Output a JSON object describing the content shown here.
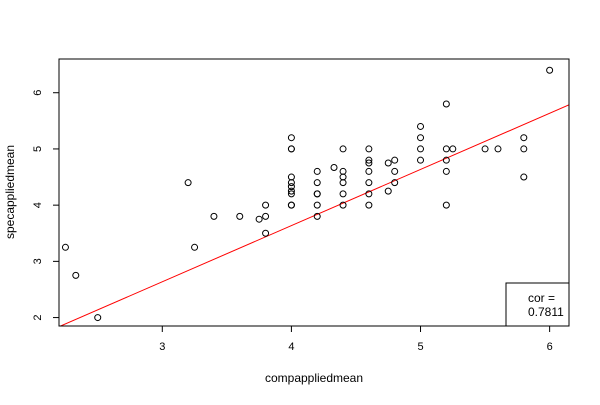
{
  "chart_data": {
    "type": "scatter",
    "xlabel": "compappliedmean",
    "ylabel": "specappliedmean",
    "xlim": [
      2.2,
      6.15
    ],
    "ylim": [
      1.85,
      6.6
    ],
    "xticks": [
      3,
      4,
      5,
      6
    ],
    "yticks": [
      2,
      3,
      4,
      5,
      6
    ],
    "grid": false,
    "points": [
      [
        2.25,
        3.25
      ],
      [
        2.33,
        2.75
      ],
      [
        2.5,
        2.0
      ],
      [
        3.2,
        4.4
      ],
      [
        3.25,
        3.25
      ],
      [
        3.4,
        3.8
      ],
      [
        3.6,
        3.8
      ],
      [
        3.75,
        3.75
      ],
      [
        3.8,
        3.8
      ],
      [
        3.8,
        4.0
      ],
      [
        3.8,
        3.5
      ],
      [
        4.0,
        4.0
      ],
      [
        4.0,
        4.0
      ],
      [
        4.0,
        4.2
      ],
      [
        4.0,
        4.25
      ],
      [
        4.0,
        4.33
      ],
      [
        4.0,
        4.4
      ],
      [
        4.0,
        4.5
      ],
      [
        4.0,
        5.0
      ],
      [
        4.0,
        5.0
      ],
      [
        4.0,
        5.2
      ],
      [
        4.2,
        3.8
      ],
      [
        4.2,
        4.0
      ],
      [
        4.2,
        4.2
      ],
      [
        4.2,
        4.2
      ],
      [
        4.2,
        4.4
      ],
      [
        4.2,
        4.6
      ],
      [
        4.33,
        4.67
      ],
      [
        4.4,
        4.0
      ],
      [
        4.4,
        4.2
      ],
      [
        4.4,
        4.4
      ],
      [
        4.4,
        4.5
      ],
      [
        4.4,
        4.6
      ],
      [
        4.4,
        5.0
      ],
      [
        4.6,
        4.0
      ],
      [
        4.6,
        4.2
      ],
      [
        4.6,
        4.4
      ],
      [
        4.6,
        4.6
      ],
      [
        4.6,
        4.75
      ],
      [
        4.6,
        4.8
      ],
      [
        4.6,
        5.0
      ],
      [
        4.75,
        4.25
      ],
      [
        4.75,
        4.75
      ],
      [
        4.8,
        4.4
      ],
      [
        4.8,
        4.6
      ],
      [
        4.8,
        4.8
      ],
      [
        5.0,
        4.8
      ],
      [
        5.0,
        5.0
      ],
      [
        5.0,
        5.2
      ],
      [
        5.0,
        5.4
      ],
      [
        5.2,
        4.0
      ],
      [
        5.2,
        4.6
      ],
      [
        5.2,
        4.8
      ],
      [
        5.2,
        5.0
      ],
      [
        5.2,
        5.8
      ],
      [
        5.25,
        5.0
      ],
      [
        5.5,
        5.0
      ],
      [
        5.6,
        5.0
      ],
      [
        5.8,
        4.5
      ],
      [
        5.8,
        5.0
      ],
      [
        5.8,
        5.2
      ],
      [
        6.0,
        6.4
      ]
    ],
    "fit_line": {
      "slope": 0.999,
      "intercept": -0.36,
      "color": "#ff0000"
    },
    "legend": {
      "line1": "cor =",
      "line2": "0.7811",
      "placement": "bottom-right"
    }
  }
}
